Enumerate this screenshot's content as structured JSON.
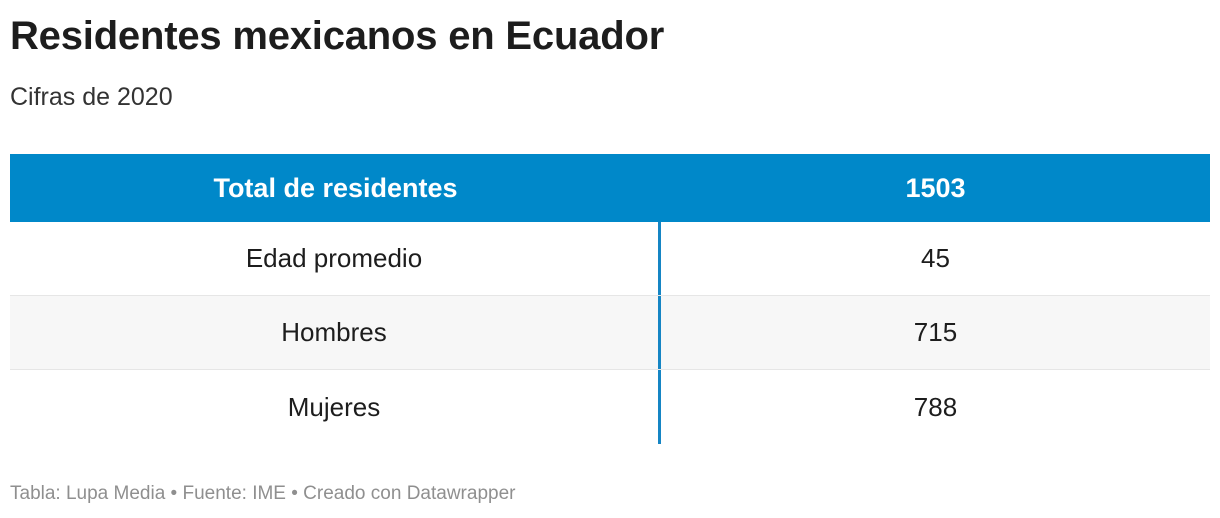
{
  "title": "Residentes mexicanos en Ecuador",
  "subtitle": "Cifras de 2020",
  "chart_data": {
    "type": "table",
    "title": "Residentes mexicanos en Ecuador",
    "subtitle": "Cifras de 2020",
    "header": [
      "Total de residentes",
      "1503"
    ],
    "rows": [
      [
        "Edad promedio",
        "45"
      ],
      [
        "Hombres",
        "715"
      ],
      [
        "Mujeres",
        "788"
      ]
    ]
  },
  "footer": "Tabla: Lupa Media • Fuente: IME • Creado con Datawrapper",
  "colors": {
    "header_bg": "#0088c9",
    "header_text": "#ffffff",
    "divider": "#1585c4",
    "alt_row": "#f7f7f7"
  }
}
